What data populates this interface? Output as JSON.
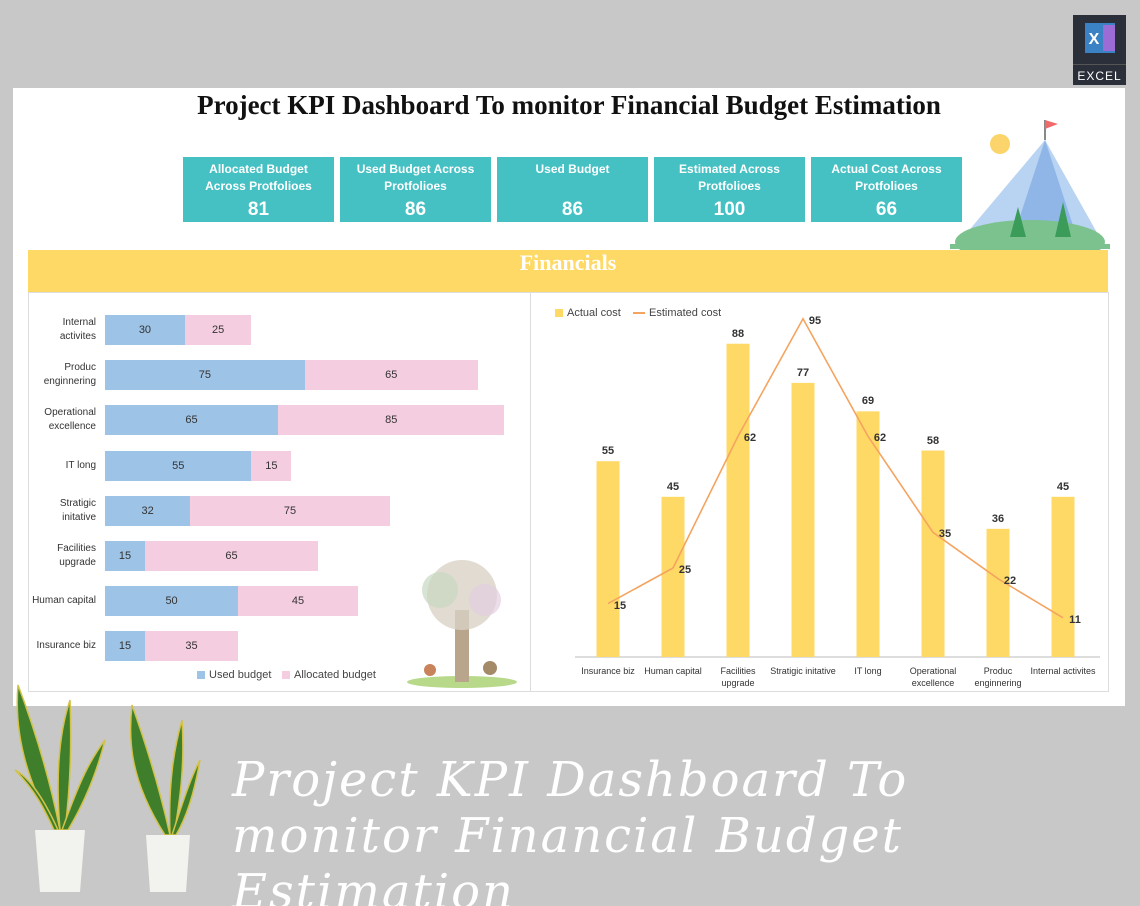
{
  "title": "Project KPI Dashboard To monitor Financial Budget Estimation",
  "badge": "EXCEL",
  "kpis": [
    {
      "label": "Allocated Budget Across Protfolioes",
      "value": 81
    },
    {
      "label": "Used Budget Across Protfolioes",
      "value": 86
    },
    {
      "label": "Used Budget",
      "value": 86
    },
    {
      "label": "Estimated Across Protfolioes",
      "value": 100
    },
    {
      "label": "Actual Cost  Across Protfolioes",
      "value": 66
    }
  ],
  "section_title": "Financials",
  "chart_data": [
    {
      "type": "bar",
      "orientation": "horizontal",
      "stacked": true,
      "categories": [
        "Internal activites",
        "Produc enginnering",
        "Operational excellence",
        "IT long",
        "Stratigic initative",
        "Facilities upgrade",
        "Human capital",
        "Insurance biz"
      ],
      "series": [
        {
          "name": "Used budget",
          "color": "#9dc3e6",
          "values": [
            30,
            75,
            65,
            55,
            32,
            15,
            50,
            15
          ]
        },
        {
          "name": "Allocated budget",
          "color": "#f5cde0",
          "values": [
            25,
            65,
            85,
            15,
            75,
            65,
            45,
            35
          ]
        }
      ],
      "xlim": [
        0,
        160
      ],
      "legend": "bottom"
    },
    {
      "type": "combo",
      "categories": [
        "Insurance biz",
        "Human capital",
        "Facilities upgrade",
        "Stratigic initative",
        "IT long",
        "Operational excellence",
        "Produc enginnering",
        "Internal activites"
      ],
      "series": [
        {
          "name": "Actual cost",
          "type": "bar",
          "color": "#ffd966",
          "values": [
            55,
            45,
            88,
            77,
            69,
            58,
            36,
            45
          ]
        },
        {
          "name": "Estimated cost",
          "type": "line",
          "color": "#f4a460",
          "values": [
            15,
            25,
            62,
            95,
            62,
            35,
            22,
            11
          ]
        }
      ],
      "ylim": [
        0,
        100
      ],
      "legend": "top-left"
    }
  ],
  "footer_text": "Project KPI Dashboard To monitor Financial Budget Estimation"
}
